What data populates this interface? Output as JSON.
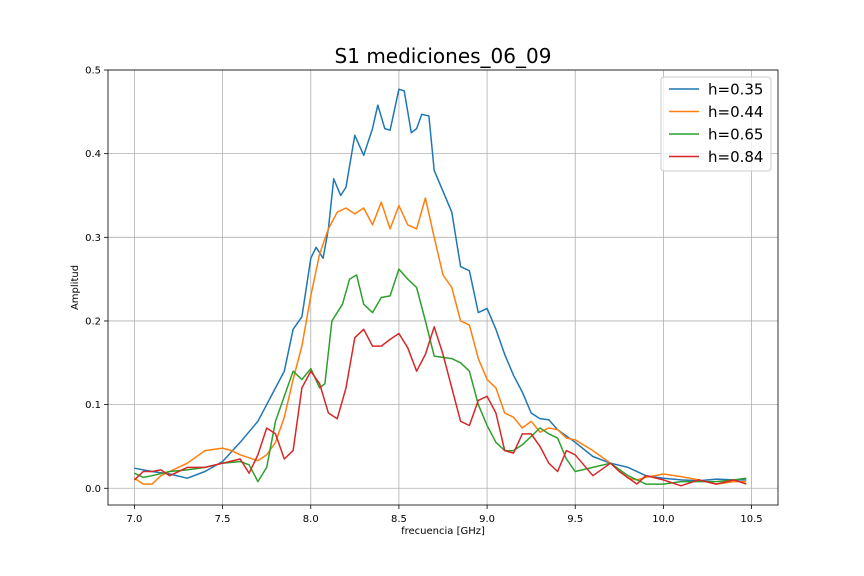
{
  "chart_data": {
    "type": "line",
    "title": "S1 mediciones_06_09",
    "xlabel": "frecuencia [GHz]",
    "ylabel": "Amplitud",
    "xlim": [
      6.85,
      10.65
    ],
    "ylim": [
      -0.02,
      0.5
    ],
    "xticks": [
      "7.0",
      "7.5",
      "8.0",
      "8.5",
      "9.0",
      "9.5",
      "10.0",
      "10.5"
    ],
    "yticks": [
      "0.0",
      "0.1",
      "0.2",
      "0.3",
      "0.4",
      "0.5"
    ],
    "grid": true,
    "legend_position": "top-right",
    "series": [
      {
        "name": "h=0.35",
        "color": "#1f77b4",
        "points": [
          [
            7.0,
            0.024
          ],
          [
            7.1,
            0.02
          ],
          [
            7.2,
            0.017
          ],
          [
            7.3,
            0.012
          ],
          [
            7.4,
            0.02
          ],
          [
            7.5,
            0.032
          ],
          [
            7.6,
            0.055
          ],
          [
            7.7,
            0.08
          ],
          [
            7.8,
            0.12
          ],
          [
            7.85,
            0.14
          ],
          [
            7.9,
            0.19
          ],
          [
            7.95,
            0.205
          ],
          [
            8.0,
            0.275
          ],
          [
            8.03,
            0.288
          ],
          [
            8.07,
            0.275
          ],
          [
            8.1,
            0.31
          ],
          [
            8.13,
            0.37
          ],
          [
            8.17,
            0.35
          ],
          [
            8.2,
            0.36
          ],
          [
            8.25,
            0.422
          ],
          [
            8.3,
            0.398
          ],
          [
            8.35,
            0.43
          ],
          [
            8.38,
            0.458
          ],
          [
            8.42,
            0.43
          ],
          [
            8.45,
            0.428
          ],
          [
            8.5,
            0.477
          ],
          [
            8.53,
            0.475
          ],
          [
            8.57,
            0.425
          ],
          [
            8.6,
            0.43
          ],
          [
            8.63,
            0.447
          ],
          [
            8.67,
            0.445
          ],
          [
            8.7,
            0.38
          ],
          [
            8.75,
            0.355
          ],
          [
            8.8,
            0.33
          ],
          [
            8.85,
            0.265
          ],
          [
            8.9,
            0.26
          ],
          [
            8.95,
            0.21
          ],
          [
            9.0,
            0.215
          ],
          [
            9.05,
            0.19
          ],
          [
            9.1,
            0.16
          ],
          [
            9.15,
            0.135
          ],
          [
            9.2,
            0.115
          ],
          [
            9.25,
            0.09
          ],
          [
            9.3,
            0.083
          ],
          [
            9.35,
            0.082
          ],
          [
            9.4,
            0.07
          ],
          [
            9.5,
            0.055
          ],
          [
            9.6,
            0.038
          ],
          [
            9.7,
            0.03
          ],
          [
            9.8,
            0.025
          ],
          [
            9.9,
            0.015
          ],
          [
            10.0,
            0.012
          ],
          [
            10.1,
            0.01
          ],
          [
            10.2,
            0.009
          ],
          [
            10.3,
            0.011
          ],
          [
            10.4,
            0.01
          ],
          [
            10.47,
            0.01
          ]
        ]
      },
      {
        "name": "h=0.44",
        "color": "#ff7f0e",
        "points": [
          [
            7.0,
            0.012
          ],
          [
            7.05,
            0.005
          ],
          [
            7.1,
            0.005
          ],
          [
            7.15,
            0.015
          ],
          [
            7.2,
            0.02
          ],
          [
            7.3,
            0.03
          ],
          [
            7.4,
            0.045
          ],
          [
            7.5,
            0.048
          ],
          [
            7.55,
            0.045
          ],
          [
            7.6,
            0.04
          ],
          [
            7.7,
            0.033
          ],
          [
            7.75,
            0.04
          ],
          [
            7.8,
            0.055
          ],
          [
            7.85,
            0.085
          ],
          [
            7.9,
            0.13
          ],
          [
            7.95,
            0.17
          ],
          [
            8.0,
            0.23
          ],
          [
            8.05,
            0.28
          ],
          [
            8.1,
            0.31
          ],
          [
            8.15,
            0.33
          ],
          [
            8.2,
            0.335
          ],
          [
            8.25,
            0.328
          ],
          [
            8.3,
            0.335
          ],
          [
            8.35,
            0.315
          ],
          [
            8.4,
            0.342
          ],
          [
            8.45,
            0.31
          ],
          [
            8.5,
            0.338
          ],
          [
            8.55,
            0.315
          ],
          [
            8.6,
            0.31
          ],
          [
            8.65,
            0.347
          ],
          [
            8.7,
            0.3
          ],
          [
            8.75,
            0.255
          ],
          [
            8.8,
            0.24
          ],
          [
            8.85,
            0.2
          ],
          [
            8.9,
            0.195
          ],
          [
            8.95,
            0.155
          ],
          [
            9.0,
            0.13
          ],
          [
            9.05,
            0.12
          ],
          [
            9.1,
            0.09
          ],
          [
            9.15,
            0.085
          ],
          [
            9.2,
            0.072
          ],
          [
            9.25,
            0.08
          ],
          [
            9.3,
            0.067
          ],
          [
            9.35,
            0.072
          ],
          [
            9.4,
            0.07
          ],
          [
            9.45,
            0.06
          ],
          [
            9.5,
            0.058
          ],
          [
            9.6,
            0.045
          ],
          [
            9.7,
            0.03
          ],
          [
            9.8,
            0.012
          ],
          [
            9.85,
            0.01
          ],
          [
            9.9,
            0.013
          ],
          [
            10.0,
            0.017
          ],
          [
            10.1,
            0.014
          ],
          [
            10.2,
            0.01
          ],
          [
            10.3,
            0.005
          ],
          [
            10.4,
            0.008
          ],
          [
            10.47,
            0.008
          ]
        ]
      },
      {
        "name": "h=0.65",
        "color": "#2ca02c",
        "points": [
          [
            7.0,
            0.018
          ],
          [
            7.05,
            0.013
          ],
          [
            7.1,
            0.015
          ],
          [
            7.2,
            0.02
          ],
          [
            7.3,
            0.022
          ],
          [
            7.4,
            0.025
          ],
          [
            7.5,
            0.03
          ],
          [
            7.6,
            0.032
          ],
          [
            7.65,
            0.028
          ],
          [
            7.7,
            0.008
          ],
          [
            7.75,
            0.025
          ],
          [
            7.8,
            0.08
          ],
          [
            7.85,
            0.11
          ],
          [
            7.9,
            0.14
          ],
          [
            7.95,
            0.13
          ],
          [
            8.0,
            0.143
          ],
          [
            8.05,
            0.12
          ],
          [
            8.08,
            0.125
          ],
          [
            8.12,
            0.2
          ],
          [
            8.18,
            0.22
          ],
          [
            8.22,
            0.25
          ],
          [
            8.26,
            0.255
          ],
          [
            8.3,
            0.22
          ],
          [
            8.35,
            0.21
          ],
          [
            8.4,
            0.228
          ],
          [
            8.45,
            0.23
          ],
          [
            8.5,
            0.262
          ],
          [
            8.55,
            0.25
          ],
          [
            8.6,
            0.24
          ],
          [
            8.65,
            0.2
          ],
          [
            8.7,
            0.158
          ],
          [
            8.8,
            0.155
          ],
          [
            8.85,
            0.15
          ],
          [
            8.9,
            0.14
          ],
          [
            8.95,
            0.1
          ],
          [
            9.0,
            0.075
          ],
          [
            9.05,
            0.055
          ],
          [
            9.1,
            0.045
          ],
          [
            9.15,
            0.045
          ],
          [
            9.2,
            0.052
          ],
          [
            9.3,
            0.072
          ],
          [
            9.35,
            0.065
          ],
          [
            9.4,
            0.06
          ],
          [
            9.45,
            0.035
          ],
          [
            9.5,
            0.02
          ],
          [
            9.6,
            0.025
          ],
          [
            9.7,
            0.03
          ],
          [
            9.8,
            0.015
          ],
          [
            9.9,
            0.005
          ],
          [
            10.0,
            0.005
          ],
          [
            10.1,
            0.008
          ],
          [
            10.2,
            0.008
          ],
          [
            10.3,
            0.008
          ],
          [
            10.4,
            0.01
          ],
          [
            10.47,
            0.012
          ]
        ]
      },
      {
        "name": "h=0.84",
        "color": "#d62728",
        "points": [
          [
            7.0,
            0.01
          ],
          [
            7.05,
            0.02
          ],
          [
            7.1,
            0.02
          ],
          [
            7.15,
            0.022
          ],
          [
            7.2,
            0.015
          ],
          [
            7.3,
            0.025
          ],
          [
            7.4,
            0.025
          ],
          [
            7.5,
            0.03
          ],
          [
            7.6,
            0.035
          ],
          [
            7.65,
            0.018
          ],
          [
            7.7,
            0.04
          ],
          [
            7.75,
            0.072
          ],
          [
            7.8,
            0.065
          ],
          [
            7.85,
            0.035
          ],
          [
            7.9,
            0.045
          ],
          [
            7.95,
            0.12
          ],
          [
            8.0,
            0.14
          ],
          [
            8.05,
            0.125
          ],
          [
            8.1,
            0.09
          ],
          [
            8.15,
            0.083
          ],
          [
            8.2,
            0.12
          ],
          [
            8.25,
            0.18
          ],
          [
            8.3,
            0.19
          ],
          [
            8.35,
            0.17
          ],
          [
            8.4,
            0.17
          ],
          [
            8.45,
            0.178
          ],
          [
            8.5,
            0.185
          ],
          [
            8.55,
            0.168
          ],
          [
            8.6,
            0.14
          ],
          [
            8.65,
            0.16
          ],
          [
            8.7,
            0.193
          ],
          [
            8.75,
            0.16
          ],
          [
            8.8,
            0.12
          ],
          [
            8.85,
            0.08
          ],
          [
            8.9,
            0.075
          ],
          [
            8.95,
            0.105
          ],
          [
            9.0,
            0.11
          ],
          [
            9.05,
            0.09
          ],
          [
            9.1,
            0.045
          ],
          [
            9.15,
            0.042
          ],
          [
            9.2,
            0.065
          ],
          [
            9.25,
            0.065
          ],
          [
            9.3,
            0.05
          ],
          [
            9.35,
            0.03
          ],
          [
            9.4,
            0.02
          ],
          [
            9.45,
            0.045
          ],
          [
            9.5,
            0.04
          ],
          [
            9.6,
            0.015
          ],
          [
            9.7,
            0.03
          ],
          [
            9.75,
            0.02
          ],
          [
            9.85,
            0.005
          ],
          [
            9.9,
            0.015
          ],
          [
            10.0,
            0.01
          ],
          [
            10.1,
            0.003
          ],
          [
            10.2,
            0.01
          ],
          [
            10.3,
            0.005
          ],
          [
            10.4,
            0.01
          ],
          [
            10.47,
            0.005
          ]
        ]
      }
    ]
  }
}
